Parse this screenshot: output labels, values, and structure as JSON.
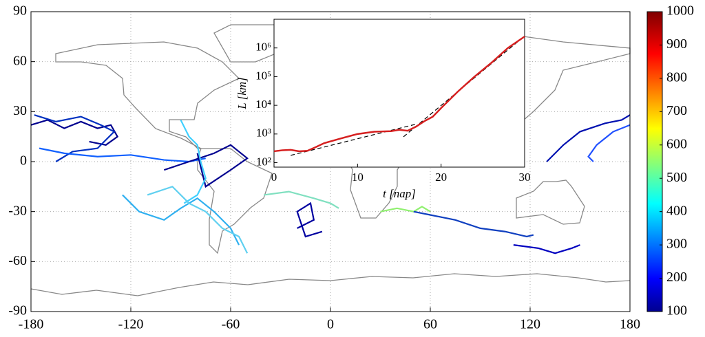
{
  "chart_data": [
    {
      "type": "trajectory",
      "xlim": [
        -180,
        180
      ],
      "xticks": [
        -180,
        -120,
        -60,
        0,
        60,
        120,
        180
      ],
      "ylim": [
        -90,
        90
      ],
      "yticks": [
        -90,
        -60,
        -30,
        0,
        30,
        60,
        90
      ],
      "grid": true,
      "colorbar": {
        "colormap": "jet",
        "clim": [
          100,
          1000
        ],
        "ticks": [
          100,
          200,
          300,
          400,
          500,
          600,
          700,
          800,
          900,
          1000
        ]
      },
      "series": [
        {
          "color": "#00008f",
          "x": [
            -180,
            -170,
            -160,
            -150,
            -140,
            -132,
            -128,
            -135,
            -145
          ],
          "values": [
            22,
            25,
            20,
            24,
            20,
            22,
            15,
            10,
            12
          ]
        },
        {
          "color": "#0030c0",
          "x": [
            -178,
            -165,
            -150,
            -138,
            -130,
            -140,
            -155,
            -165
          ],
          "values": [
            28,
            24,
            27,
            22,
            18,
            8,
            6,
            0
          ]
        },
        {
          "color": "#1060ff",
          "x": [
            -175,
            -160,
            -140,
            -120,
            -100,
            -85,
            -75
          ],
          "values": [
            8,
            5,
            3,
            4,
            1,
            0,
            2
          ]
        },
        {
          "color": "#000090",
          "x": [
            -100,
            -85,
            -70,
            -60,
            -50,
            -60,
            -75,
            -80
          ],
          "values": [
            -5,
            0,
            5,
            10,
            2,
            -5,
            -15,
            5
          ]
        },
        {
          "color": "#40d0ff",
          "x": [
            -90,
            -85,
            -80,
            -78,
            -75,
            -80,
            -88
          ],
          "values": [
            25,
            15,
            10,
            0,
            -10,
            -20,
            -25
          ]
        },
        {
          "color": "#30b0f0",
          "x": [
            -125,
            -115,
            -100,
            -90,
            -80,
            -70,
            -60,
            -55
          ],
          "values": [
            -20,
            -30,
            -35,
            -28,
            -22,
            -30,
            -40,
            -50
          ]
        },
        {
          "color": "#60d0f0",
          "x": [
            -110,
            -95,
            -85,
            -75,
            -65,
            -55,
            -50
          ],
          "values": [
            -20,
            -15,
            -25,
            -30,
            -40,
            -45,
            -55
          ]
        },
        {
          "color": "#80e0c0",
          "x": [
            -40,
            -25,
            -10,
            0,
            5
          ],
          "values": [
            -20,
            -18,
            -22,
            -25,
            -28
          ]
        },
        {
          "color": "#0000a0",
          "x": [
            -20,
            -10,
            -12,
            -20,
            -15,
            -5
          ],
          "values": [
            -40,
            -35,
            -25,
            -30,
            -45,
            -42
          ]
        },
        {
          "color": "#90f070",
          "x": [
            30,
            40,
            50,
            55,
            60
          ],
          "values": [
            -30,
            -28,
            -30,
            -27,
            -30
          ]
        },
        {
          "color": "#1040c0",
          "x": [
            50,
            60,
            75,
            90,
            105,
            118,
            122
          ],
          "values": [
            -30,
            -32,
            -35,
            -40,
            -42,
            -45,
            -44
          ]
        },
        {
          "color": "#0010b0",
          "x": [
            130,
            140,
            150,
            165,
            175,
            180
          ],
          "values": [
            0,
            10,
            18,
            23,
            25,
            28
          ]
        },
        {
          "color": "#2050ff",
          "x": [
            180,
            170,
            160,
            155,
            158
          ],
          "values": [
            22,
            18,
            10,
            3,
            0
          ]
        },
        {
          "color": "#0000c0",
          "x": [
            110,
            125,
            135,
            145,
            150
          ],
          "values": [
            -50,
            -52,
            -55,
            -52,
            -50
          ]
        }
      ]
    },
    {
      "type": "line",
      "x_label": "t [nap]",
      "y_label": "L [km]",
      "xlim": [
        0,
        30
      ],
      "xticks": [
        0,
        10,
        20,
        30
      ],
      "ylim": [
        70,
        10000000
      ],
      "yscale": "log",
      "yticks": [
        {
          "value": 100,
          "label": "10²"
        },
        {
          "value": 1000,
          "label": "10³"
        },
        {
          "value": 10000,
          "label": "10⁴"
        },
        {
          "value": 100000,
          "label": "10⁵"
        },
        {
          "value": 1000000,
          "label": "10⁶"
        }
      ],
      "series": [
        {
          "color": "#000000",
          "linestyle": "dashed",
          "x": [
            2,
            17
          ],
          "values": [
            180,
            2200
          ]
        },
        {
          "color": "#000000",
          "linestyle": "dashed",
          "x": [
            15.5,
            30
          ],
          "values": [
            800,
            2600000
          ]
        },
        {
          "color": "#d62020",
          "linestyle": "solid",
          "x": [
            0,
            1,
            2,
            3,
            4,
            5,
            6,
            8,
            10,
            12,
            14,
            15,
            16,
            17,
            18,
            19,
            20,
            22,
            24,
            26,
            28,
            30
          ],
          "values": [
            250,
            270,
            280,
            250,
            260,
            350,
            480,
            700,
            1000,
            1200,
            1250,
            1400,
            1300,
            1800,
            2800,
            4000,
            8000,
            30000,
            100000,
            300000,
            1000000,
            2500000
          ]
        }
      ]
    }
  ]
}
